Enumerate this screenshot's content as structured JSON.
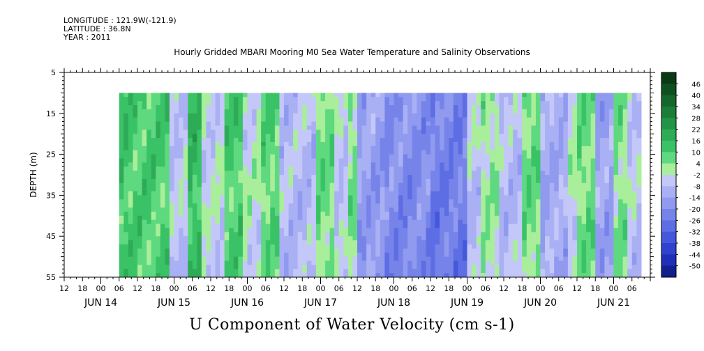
{
  "header": {
    "longitude": "LONGITUDE : 121.9W(-121.9)",
    "latitude": "LATITUDE : 36.8N",
    "year": "YEAR : 2011"
  },
  "chart_data": {
    "type": "heatmap",
    "title": "Hourly Gridded MBARI Mooring M0 Sea Water Temperature and Salinity Observations",
    "xlabel": "U Component of Water Velocity (cm s-1)",
    "ylabel": "DEPTH (m)",
    "y_ticks": [
      5,
      15,
      25,
      35,
      45,
      55
    ],
    "ylim": [
      5,
      55
    ],
    "data_depth_range": [
      10,
      55
    ],
    "hour_tick_labels": [
      "12",
      "18",
      "00",
      "06",
      "12",
      "18",
      "00",
      "06",
      "12",
      "18",
      "00",
      "06",
      "12",
      "18",
      "00",
      "06",
      "12",
      "18",
      "00",
      "06",
      "12",
      "18",
      "00",
      "06",
      "12",
      "18",
      "00",
      "06",
      "12",
      "18",
      "00",
      "06"
    ],
    "day_labels": [
      "JUN 14",
      "JUN 15",
      "JUN 16",
      "JUN 17",
      "JUN 18",
      "JUN 19",
      "JUN 20",
      "JUN 21"
    ],
    "x_range_hours": [
      0,
      192
    ],
    "data_time_range_hours": [
      18,
      189
    ],
    "colorbar_labels": [
      "46",
      "40",
      "34",
      "28",
      "22",
      "16",
      "10",
      "4",
      "-2",
      "-8",
      "-14",
      "-20",
      "-26",
      "-32",
      "-38",
      "-44",
      "-50"
    ],
    "colorbar_colors": [
      "#0a3a14",
      "#0f5020",
      "#15662c",
      "#1c7d38",
      "#239447",
      "#2eab56",
      "#3ac266",
      "#5fd97f",
      "#a9ee9a",
      "#c4c8f8",
      "#aab0f4",
      "#909aef",
      "#7684ea",
      "#5d6ee4",
      "#4558dc",
      "#2f43d0",
      "#1e30b8",
      "#12208e"
    ],
    "data_description": "U velocity roughly -25 to +25 cm/s; mostly positive (green) Jun 14-16, strongly negative (blue) Jun 17-18, alternating Jun 19-21"
  }
}
